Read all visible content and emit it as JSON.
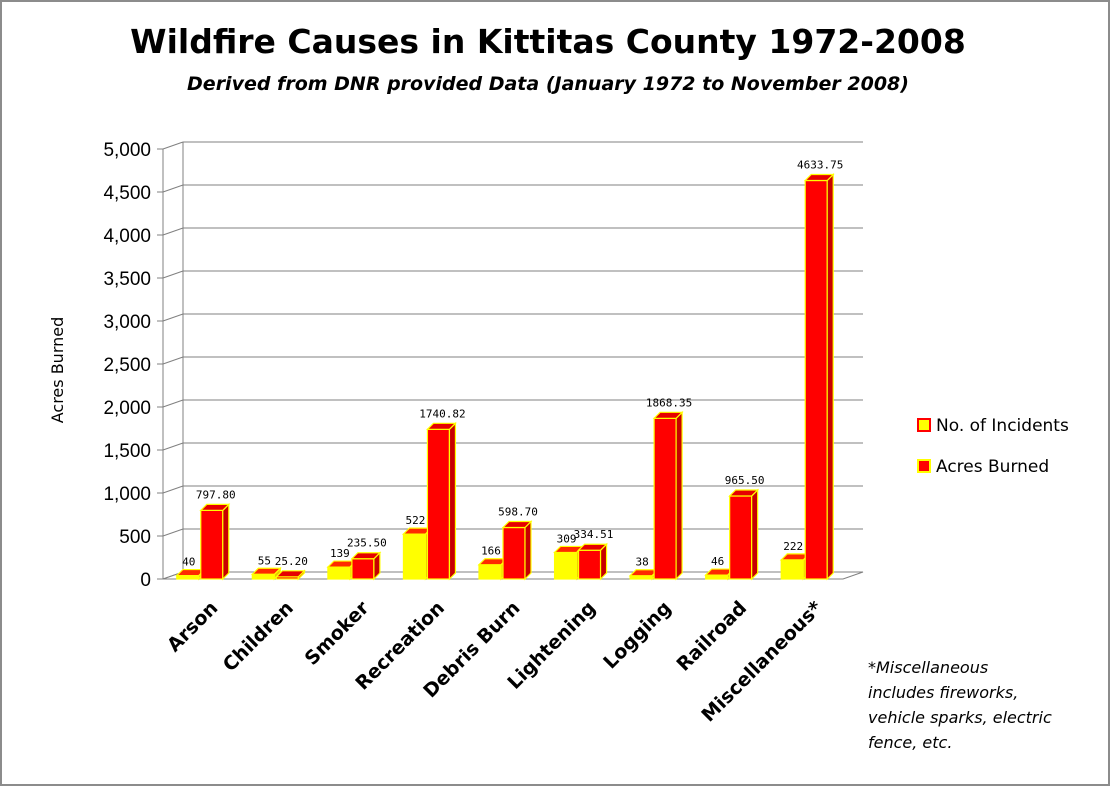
{
  "chart_data": {
    "type": "bar",
    "title": "Wildfire Causes in Kittitas County 1972-2008",
    "subtitle": "Derived from DNR provided Data (January 1972 to November 2008)",
    "ylabel": "Acres Burned",
    "ylim": [
      0,
      5000
    ],
    "yticks": [
      "0",
      "500",
      "1,000",
      "1,500",
      "2,000",
      "2,500",
      "3,000",
      "3,500",
      "4,000",
      "4,500",
      "5,000"
    ],
    "categories": [
      "Arson",
      "Children",
      "Smoker",
      "Recreation",
      "Debris Burn",
      "Lightening",
      "Logging",
      "Railroad",
      "Miscellaneous*"
    ],
    "series": [
      {
        "name": "No. of Incidents",
        "values": [
          40,
          55,
          139,
          522,
          166,
          309,
          38,
          46,
          222
        ],
        "labels": [
          "40",
          "55",
          "139",
          "522",
          "166",
          "309",
          "38",
          "46",
          "222"
        ],
        "color": "#ffff00"
      },
      {
        "name": "Acres Burned",
        "values": [
          797.8,
          25.2,
          235.5,
          1740.82,
          598.7,
          334.51,
          1868.35,
          965.5,
          4633.75
        ],
        "labels": [
          "797.80",
          "25.20",
          "235.50",
          "1740.82",
          "598.70",
          "334.51",
          "1868.35",
          "965.50",
          "4633.75"
        ],
        "color": "#ff0000"
      }
    ],
    "legend_position": "right",
    "grid": true
  },
  "footnote": {
    "lines": [
      "*Miscellaneous",
      "includes fireworks,",
      "vehicle sparks, electric",
      "fence, etc."
    ]
  }
}
